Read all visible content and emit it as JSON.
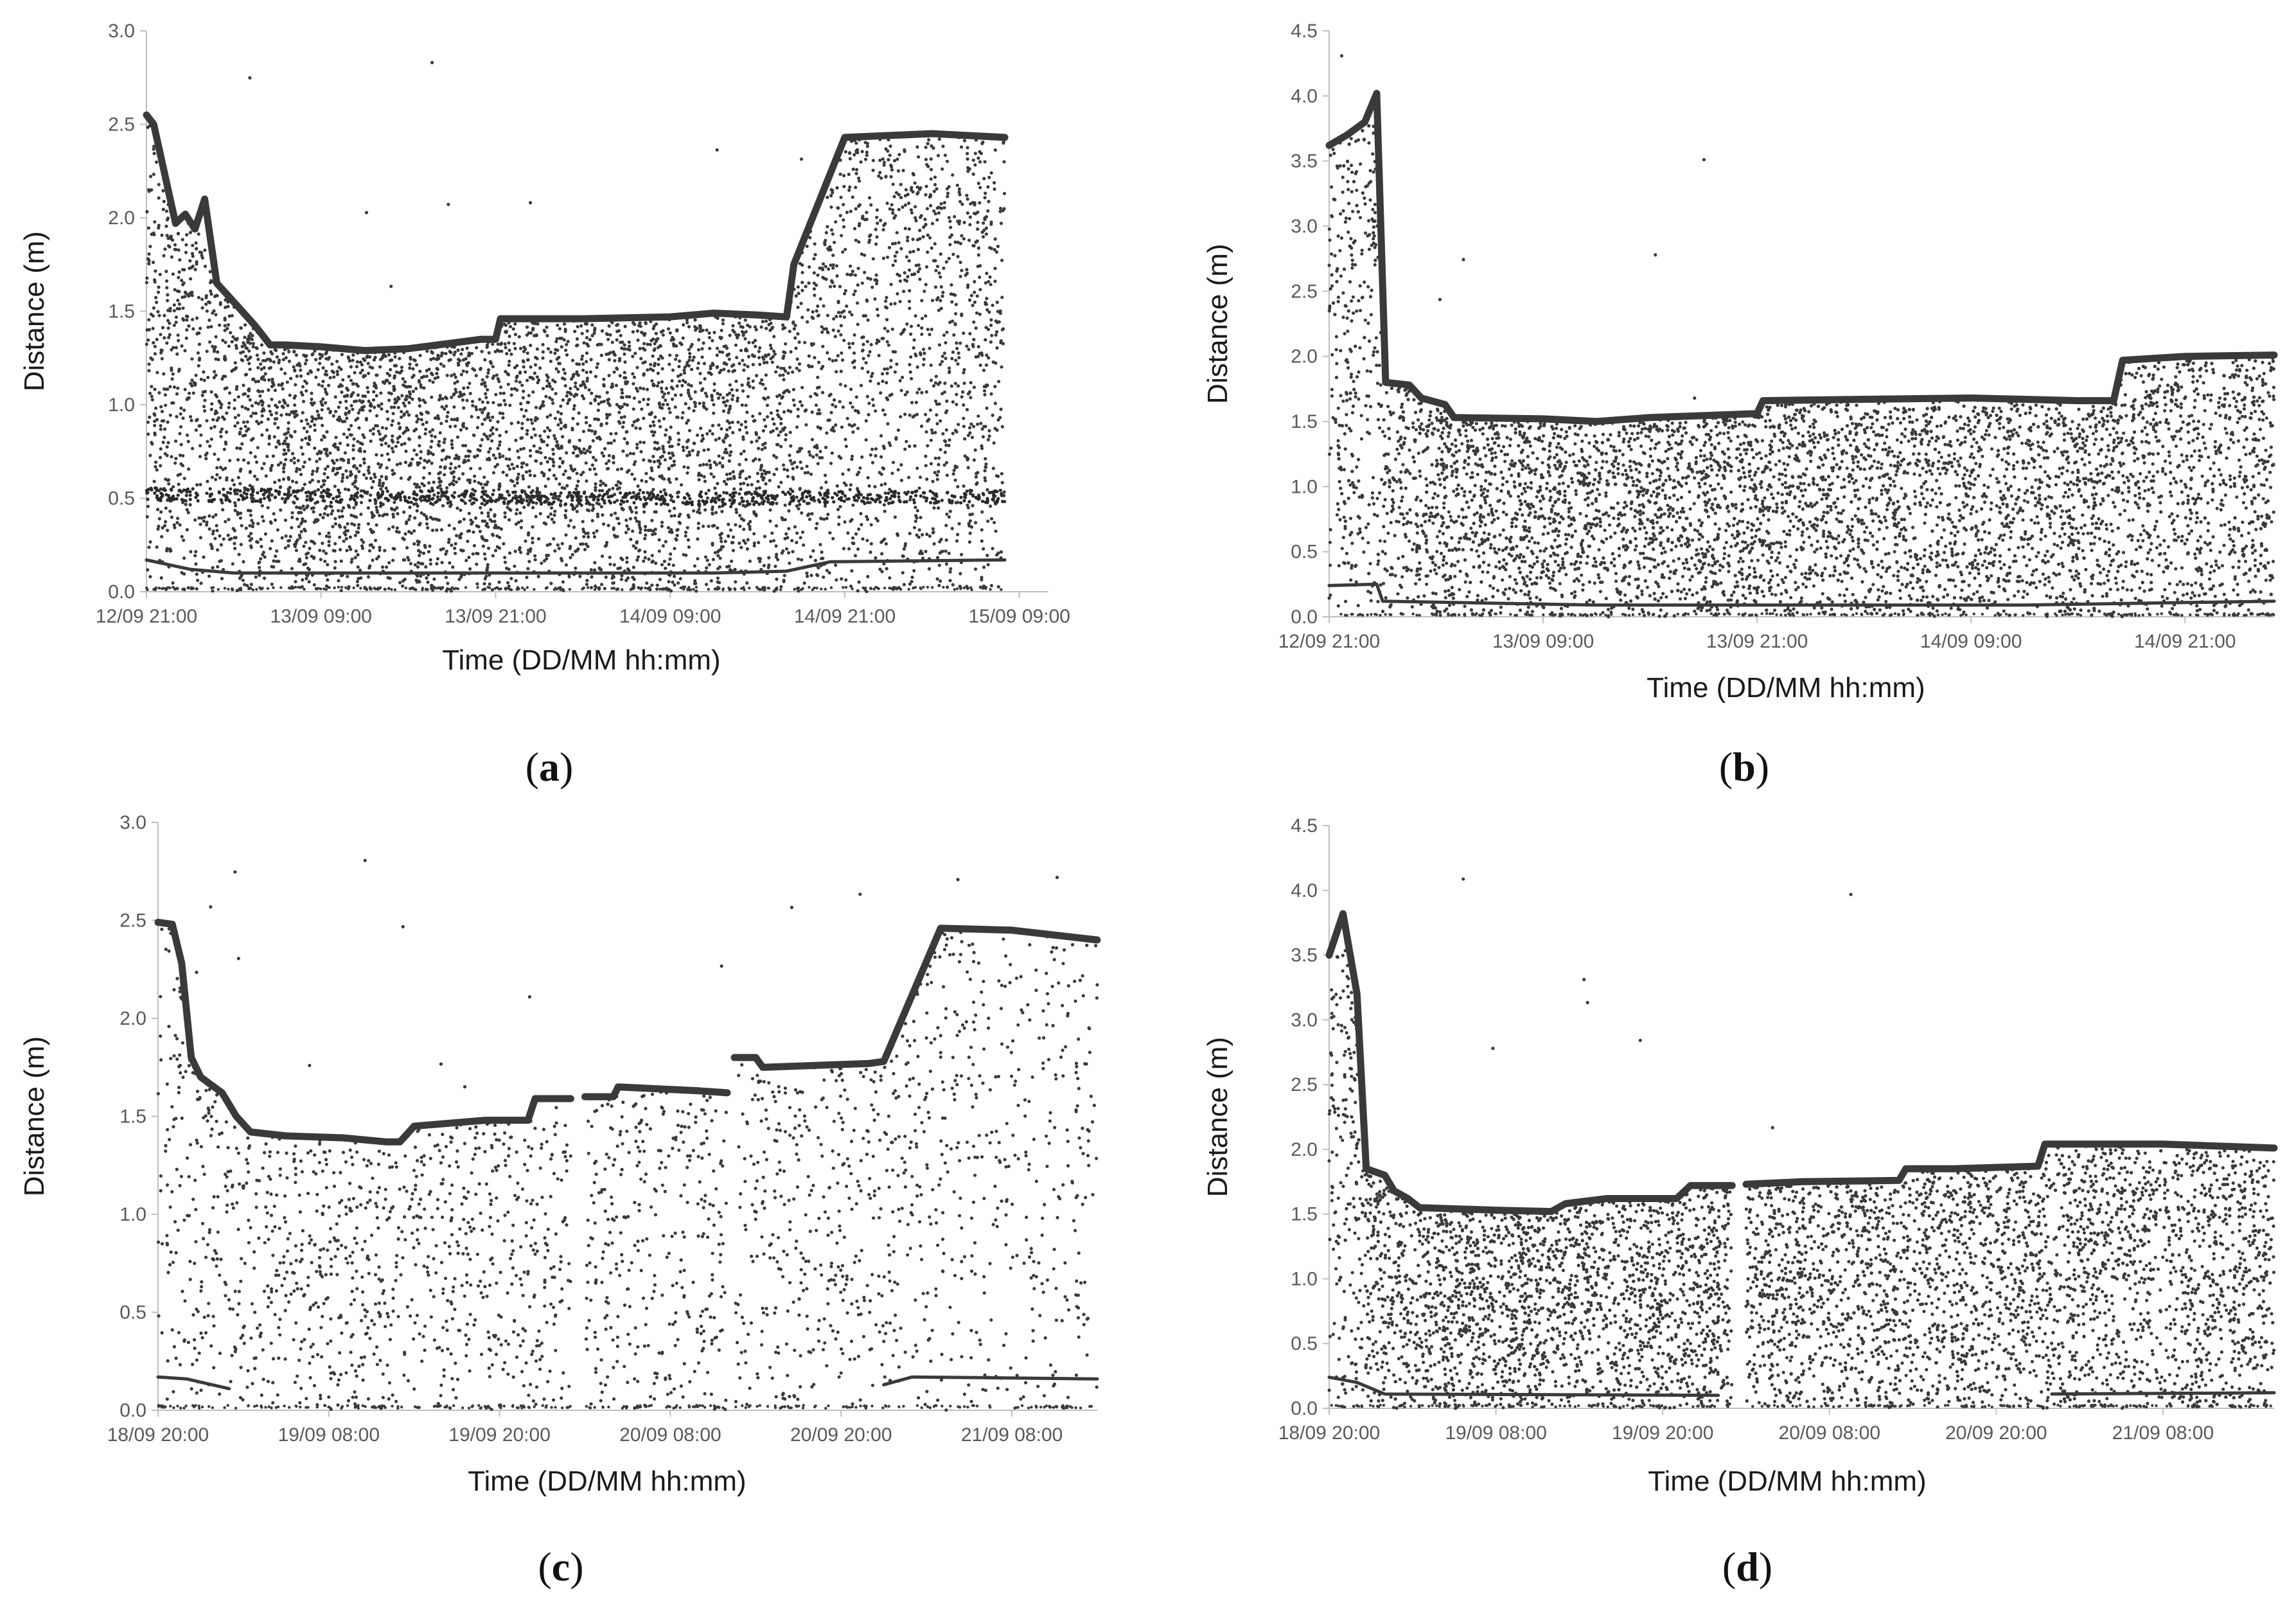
{
  "chart_data": [
    {
      "type": "scatter",
      "panel_label": "a",
      "xlabel": "Time (DD/MM hh:mm)",
      "ylabel": "Distance (m)",
      "ylim": [
        0,
        3.0
      ],
      "yticks": [
        "0.0",
        "0.5",
        "1.0",
        "1.5",
        "2.0",
        "2.5",
        "3.0"
      ],
      "xlim": [
        "2020-09-12T21:00",
        "2020-09-15T11:00"
      ],
      "xticks": [
        {
          "t": "2020-09-12T21:00",
          "label": "12/09 21:00"
        },
        {
          "t": "2020-09-13T09:00",
          "label": "13/09 09:00"
        },
        {
          "t": "2020-09-13T21:00",
          "label": "13/09 21:00"
        },
        {
          "t": "2020-09-14T09:00",
          "label": "14/09 09:00"
        },
        {
          "t": "2020-09-14T21:00",
          "label": "14/09 21:00"
        },
        {
          "t": "2020-09-15T09:00",
          "label": "15/09 09:00"
        }
      ],
      "data_start": "2020-09-12T21:00",
      "data_end": "2020-09-15T08:00",
      "gaps": [],
      "series": [
        {
          "style": "thick-line",
          "points": [
            [
              "2020-09-12T21:00",
              2.55
            ],
            [
              "2020-09-12T21:30",
              2.5
            ],
            [
              "2020-09-12T23:00",
              1.97
            ],
            [
              "2020-09-12T23:40",
              2.02
            ],
            [
              "2020-09-13T00:20",
              1.94
            ],
            [
              "2020-09-13T01:00",
              2.1
            ],
            [
              "2020-09-13T01:50",
              1.65
            ],
            [
              "2020-09-13T03:00",
              1.55
            ],
            [
              "2020-09-13T04:30",
              1.42
            ],
            [
              "2020-09-13T05:30",
              1.32
            ],
            [
              "2020-09-13T06:30",
              1.32
            ],
            [
              "2020-09-13T09:00",
              1.31
            ],
            [
              "2020-09-13T12:00",
              1.29
            ],
            [
              "2020-09-13T15:00",
              1.3
            ],
            [
              "2020-09-13T18:00",
              1.33
            ],
            [
              "2020-09-13T20:00",
              1.35
            ],
            [
              "2020-09-13T21:00",
              1.35
            ],
            [
              "2020-09-13T21:20",
              1.46
            ],
            [
              "2020-09-14T03:00",
              1.46
            ],
            [
              "2020-09-14T09:00",
              1.47
            ],
            [
              "2020-09-14T12:00",
              1.49
            ],
            [
              "2020-09-14T15:00",
              1.48
            ],
            [
              "2020-09-14T17:00",
              1.47
            ],
            [
              "2020-09-14T17:30",
              1.75
            ],
            [
              "2020-09-14T21:00",
              2.43
            ],
            [
              "2020-09-15T03:00",
              2.45
            ],
            [
              "2020-09-15T08:00",
              2.43
            ]
          ]
        },
        {
          "style": "thin-line",
          "points": [
            [
              "2020-09-12T21:00",
              0.17
            ],
            [
              "2020-09-13T00:00",
              0.12
            ],
            [
              "2020-09-13T03:00",
              0.1
            ],
            [
              "2020-09-14T12:00",
              0.1
            ],
            [
              "2020-09-14T17:00",
              0.11
            ],
            [
              "2020-09-14T20:00",
              0.16
            ],
            [
              "2020-09-15T08:00",
              0.17
            ]
          ]
        },
        {
          "style": "dotted-band",
          "points": [
            [
              "2020-09-12T21:00",
              0.52
            ],
            [
              "2020-09-13T12:00",
              0.51
            ],
            [
              "2020-09-14T00:00",
              0.5
            ],
            [
              "2020-09-14T12:00",
              0.5
            ],
            [
              "2020-09-15T08:00",
              0.51
            ]
          ]
        }
      ],
      "scatter_density": 0.85
    },
    {
      "type": "scatter",
      "panel_label": "b",
      "xlabel": "Time (DD/MM hh:mm)",
      "ylabel": "Distance (m)",
      "ylim": [
        0,
        4.5
      ],
      "yticks": [
        "0.0",
        "0.5",
        "1.0",
        "1.5",
        "2.0",
        "2.5",
        "3.0",
        "3.5",
        "4.0",
        "4.5"
      ],
      "xlim": [
        "2020-09-12T21:00",
        "2020-09-15T02:00"
      ],
      "xticks": [
        {
          "t": "2020-09-12T21:00",
          "label": "12/09 21:00"
        },
        {
          "t": "2020-09-13T09:00",
          "label": "13/09 09:00"
        },
        {
          "t": "2020-09-13T21:00",
          "label": "13/09 21:00"
        },
        {
          "t": "2020-09-14T09:00",
          "label": "14/09 09:00"
        },
        {
          "t": "2020-09-14T21:00",
          "label": "14/09 21:00"
        }
      ],
      "data_start": "2020-09-12T21:00",
      "data_end": "2020-09-15T02:00",
      "gaps": [],
      "series": [
        {
          "style": "thick-line",
          "points": [
            [
              "2020-09-12T21:00",
              3.62
            ],
            [
              "2020-09-12T22:00",
              3.7
            ],
            [
              "2020-09-12T23:00",
              3.8
            ],
            [
              "2020-09-12T23:40",
              4.02
            ],
            [
              "2020-09-13T00:10",
              1.8
            ],
            [
              "2020-09-13T01:30",
              1.78
            ],
            [
              "2020-09-13T02:10",
              1.68
            ],
            [
              "2020-09-13T03:30",
              1.63
            ],
            [
              "2020-09-13T04:00",
              1.53
            ],
            [
              "2020-09-13T09:00",
              1.52
            ],
            [
              "2020-09-13T12:00",
              1.5
            ],
            [
              "2020-09-13T15:00",
              1.53
            ],
            [
              "2020-09-13T21:00",
              1.56
            ],
            [
              "2020-09-13T21:20",
              1.66
            ],
            [
              "2020-09-14T03:00",
              1.67
            ],
            [
              "2020-09-14T09:00",
              1.68
            ],
            [
              "2020-09-14T15:00",
              1.66
            ],
            [
              "2020-09-14T17:00",
              1.66
            ],
            [
              "2020-09-14T17:30",
              1.97
            ],
            [
              "2020-09-14T21:00",
              2.0
            ],
            [
              "2020-09-15T02:00",
              2.01
            ]
          ]
        },
        {
          "style": "thin-line",
          "points": [
            [
              "2020-09-12T21:00",
              0.24
            ],
            [
              "2020-09-12T23:40",
              0.25
            ],
            [
              "2020-09-13T00:00",
              0.12
            ],
            [
              "2020-09-13T12:00",
              0.09
            ],
            [
              "2020-09-14T12:00",
              0.09
            ],
            [
              "2020-09-15T02:00",
              0.12
            ]
          ]
        }
      ],
      "scatter_density": 1.0
    },
    {
      "type": "scatter",
      "panel_label": "c",
      "xlabel": "Time (DD/MM hh:mm)",
      "ylabel": "Distance (m)",
      "ylim": [
        0,
        3.0
      ],
      "yticks": [
        "0.0",
        "0.5",
        "1.0",
        "1.5",
        "2.0",
        "2.5",
        "3.0"
      ],
      "xlim": [
        "2020-09-18T20:00",
        "2020-09-21T14:00"
      ],
      "xticks": [
        {
          "t": "2020-09-18T20:00",
          "label": "18/09 20:00"
        },
        {
          "t": "2020-09-19T08:00",
          "label": "19/09 08:00"
        },
        {
          "t": "2020-09-19T20:00",
          "label": "19/09 20:00"
        },
        {
          "t": "2020-09-20T08:00",
          "label": "20/09 08:00"
        },
        {
          "t": "2020-09-20T20:00",
          "label": "20/09 20:00"
        },
        {
          "t": "2020-09-21T08:00",
          "label": "21/09 08:00"
        }
      ],
      "data_start": "2020-09-18T20:00",
      "data_end": "2020-09-21T14:00",
      "gaps": [
        [
          "2020-09-20T01:00",
          "2020-09-20T02:00"
        ],
        [
          "2020-09-20T12:00",
          "2020-09-20T12:30"
        ]
      ],
      "series": [
        {
          "style": "thick-line",
          "points": [
            [
              "2020-09-18T20:00",
              2.49
            ],
            [
              "2020-09-18T21:00",
              2.48
            ],
            [
              "2020-09-18T21:40",
              2.28
            ],
            [
              "2020-09-18T22:20",
              1.8
            ],
            [
              "2020-09-18T23:00",
              1.7
            ],
            [
              "2020-09-19T00:30",
              1.62
            ],
            [
              "2020-09-19T01:30",
              1.5
            ],
            [
              "2020-09-19T02:30",
              1.42
            ],
            [
              "2020-09-19T05:00",
              1.4
            ],
            [
              "2020-09-19T09:00",
              1.39
            ],
            [
              "2020-09-19T12:00",
              1.37
            ],
            [
              "2020-09-19T13:00",
              1.37
            ],
            [
              "2020-09-19T14:00",
              1.45
            ],
            [
              "2020-09-19T19:00",
              1.48
            ],
            [
              "2020-09-19T22:00",
              1.48
            ],
            [
              "2020-09-19T22:30",
              1.59
            ],
            [
              "2020-09-20T01:00",
              1.59
            ],
            [
              "2020-09-20T02:00",
              1.6
            ],
            [
              "2020-09-20T04:00",
              1.6
            ],
            [
              "2020-09-20T04:20",
              1.65
            ],
            [
              "2020-09-20T10:00",
              1.63
            ],
            [
              "2020-09-20T12:00",
              1.62
            ],
            [
              "2020-09-20T12:30",
              1.8
            ],
            [
              "2020-09-20T14:00",
              1.8
            ],
            [
              "2020-09-20T14:30",
              1.75
            ],
            [
              "2020-09-20T22:00",
              1.77
            ],
            [
              "2020-09-20T23:00",
              1.78
            ],
            [
              "2020-09-21T03:00",
              2.46
            ],
            [
              "2020-09-21T08:00",
              2.45
            ],
            [
              "2020-09-21T14:00",
              2.4
            ]
          ]
        },
        {
          "style": "thin-line",
          "points": [
            [
              "2020-09-18T20:00",
              0.17
            ],
            [
              "2020-09-18T22:00",
              0.16
            ],
            [
              "2020-09-19T01:00",
              0.11
            ],
            [
              "2020-09-20T12:00",
              0.12
            ],
            [
              "2020-09-20T23:00",
              0.13
            ],
            [
              "2020-09-21T01:00",
              0.17
            ],
            [
              "2020-09-21T14:00",
              0.16
            ]
          ]
        }
      ],
      "scatter_density": 0.35
    },
    {
      "type": "scatter",
      "panel_label": "d",
      "xlabel": "Time (DD/MM hh:mm)",
      "ylabel": "Distance (m)",
      "ylim": [
        0,
        4.5
      ],
      "yticks": [
        "0.0",
        "0.5",
        "1.0",
        "1.5",
        "2.0",
        "2.5",
        "3.0",
        "3.5",
        "4.0",
        "4.5"
      ],
      "xlim": [
        "2020-09-18T20:00",
        "2020-09-21T16:00"
      ],
      "xticks": [
        {
          "t": "2020-09-18T20:00",
          "label": "18/09 20:00"
        },
        {
          "t": "2020-09-19T08:00",
          "label": "19/09 08:00"
        },
        {
          "t": "2020-09-19T20:00",
          "label": "19/09 20:00"
        },
        {
          "t": "2020-09-20T08:00",
          "label": "20/09 08:00"
        },
        {
          "t": "2020-09-20T20:00",
          "label": "20/09 20:00"
        },
        {
          "t": "2020-09-21T08:00",
          "label": "21/09 08:00"
        }
      ],
      "data_start": "2020-09-18T20:00",
      "data_end": "2020-09-21T16:00",
      "gaps": [
        [
          "2020-09-20T01:00",
          "2020-09-20T02:00"
        ]
      ],
      "series": [
        {
          "style": "thick-line",
          "points": [
            [
              "2020-09-18T20:00",
              3.5
            ],
            [
              "2020-09-18T21:00",
              3.82
            ],
            [
              "2020-09-18T22:00",
              3.2
            ],
            [
              "2020-09-18T22:40",
              1.85
            ],
            [
              "2020-09-19T00:00",
              1.8
            ],
            [
              "2020-09-19T00:40",
              1.68
            ],
            [
              "2020-09-19T01:40",
              1.62
            ],
            [
              "2020-09-19T02:30",
              1.55
            ],
            [
              "2020-09-19T08:00",
              1.53
            ],
            [
              "2020-09-19T12:00",
              1.52
            ],
            [
              "2020-09-19T13:00",
              1.58
            ],
            [
              "2020-09-19T16:00",
              1.62
            ],
            [
              "2020-09-19T21:00",
              1.62
            ],
            [
              "2020-09-19T22:00",
              1.72
            ],
            [
              "2020-09-20T01:00",
              1.72
            ],
            [
              "2020-09-20T02:00",
              1.73
            ],
            [
              "2020-09-20T06:00",
              1.75
            ],
            [
              "2020-09-20T13:00",
              1.76
            ],
            [
              "2020-09-20T13:30",
              1.85
            ],
            [
              "2020-09-20T17:00",
              1.85
            ],
            [
              "2020-09-20T23:00",
              1.87
            ],
            [
              "2020-09-20T23:30",
              2.04
            ],
            [
              "2020-09-21T08:00",
              2.04
            ],
            [
              "2020-09-21T16:00",
              2.01
            ]
          ]
        },
        {
          "style": "thin-line",
          "points": [
            [
              "2020-09-18T20:00",
              0.24
            ],
            [
              "2020-09-18T22:00",
              0.2
            ],
            [
              "2020-09-19T00:00",
              0.11
            ],
            [
              "2020-09-20T00:00",
              0.1
            ],
            [
              "2020-09-21T00:00",
              0.11
            ],
            [
              "2020-09-21T16:00",
              0.12
            ]
          ]
        }
      ],
      "scatter_density": 0.95
    }
  ]
}
